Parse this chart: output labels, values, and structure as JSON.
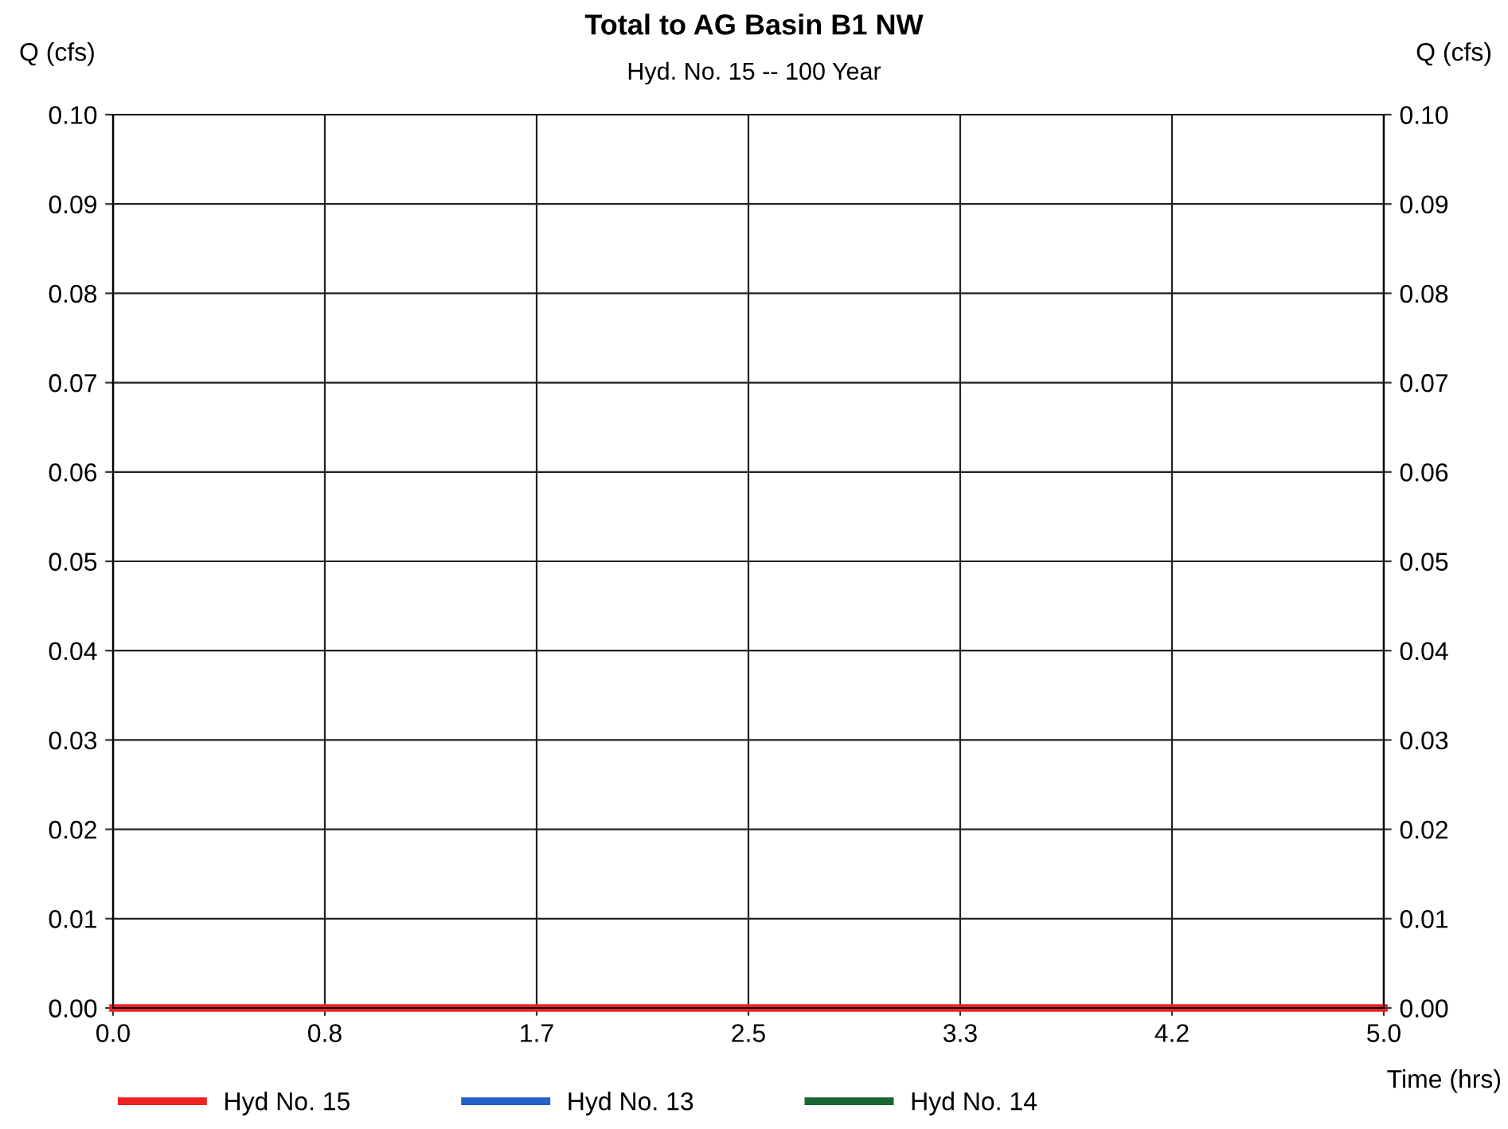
{
  "chart_data": {
    "type": "line",
    "title": "Total to AG Basin B1 NW",
    "subtitle": "Hyd. No. 15 -- 100 Year",
    "xlabel": "Time (hrs)",
    "ylabel": "Q (cfs)",
    "y2label": "Q (cfs)",
    "x": [
      0,
      5
    ],
    "series": [
      {
        "name": "Hyd No. 15",
        "color": "#ee2222",
        "values": [
          0,
          0
        ]
      },
      {
        "name": "Hyd No. 13",
        "color": "#1f63c6",
        "values": [
          null,
          null
        ]
      },
      {
        "name": "Hyd No. 14",
        "color": "#1a6632",
        "values": [
          null,
          null
        ]
      }
    ],
    "xlim": [
      0,
      5
    ],
    "xticks": [
      {
        "value": 0,
        "label": "0.0"
      },
      {
        "value": 0.8333,
        "label": "0.8"
      },
      {
        "value": 1.6667,
        "label": "1.7"
      },
      {
        "value": 2.5,
        "label": "2.5"
      },
      {
        "value": 3.3333,
        "label": "3.3"
      },
      {
        "value": 4.1667,
        "label": "4.2"
      },
      {
        "value": 5,
        "label": "5.0"
      }
    ],
    "ylim": [
      0,
      0.1
    ],
    "yticks": [
      {
        "value": 0,
        "label": "0.00"
      },
      {
        "value": 0.01,
        "label": "0.01"
      },
      {
        "value": 0.02,
        "label": "0.02"
      },
      {
        "value": 0.03,
        "label": "0.03"
      },
      {
        "value": 0.04,
        "label": "0.04"
      },
      {
        "value": 0.05,
        "label": "0.05"
      },
      {
        "value": 0.06,
        "label": "0.06"
      },
      {
        "value": 0.07,
        "label": "0.07"
      },
      {
        "value": 0.08,
        "label": "0.08"
      },
      {
        "value": 0.09,
        "label": "0.09"
      },
      {
        "value": 0.1,
        "label": "0.10"
      }
    ],
    "y2lim": [
      0,
      0.1
    ],
    "y2ticks": [
      {
        "value": 0,
        "label": "0.00"
      },
      {
        "value": 0.01,
        "label": "0.01"
      },
      {
        "value": 0.02,
        "label": "0.02"
      },
      {
        "value": 0.03,
        "label": "0.03"
      },
      {
        "value": 0.04,
        "label": "0.04"
      },
      {
        "value": 0.05,
        "label": "0.05"
      },
      {
        "value": 0.06,
        "label": "0.06"
      },
      {
        "value": 0.07,
        "label": "0.07"
      },
      {
        "value": 0.08,
        "label": "0.08"
      },
      {
        "value": 0.09,
        "label": "0.09"
      },
      {
        "value": 0.1,
        "label": "0.10"
      }
    ],
    "grid": true,
    "legend": "bottom",
    "marker": "none",
    "line_style": "solid"
  }
}
